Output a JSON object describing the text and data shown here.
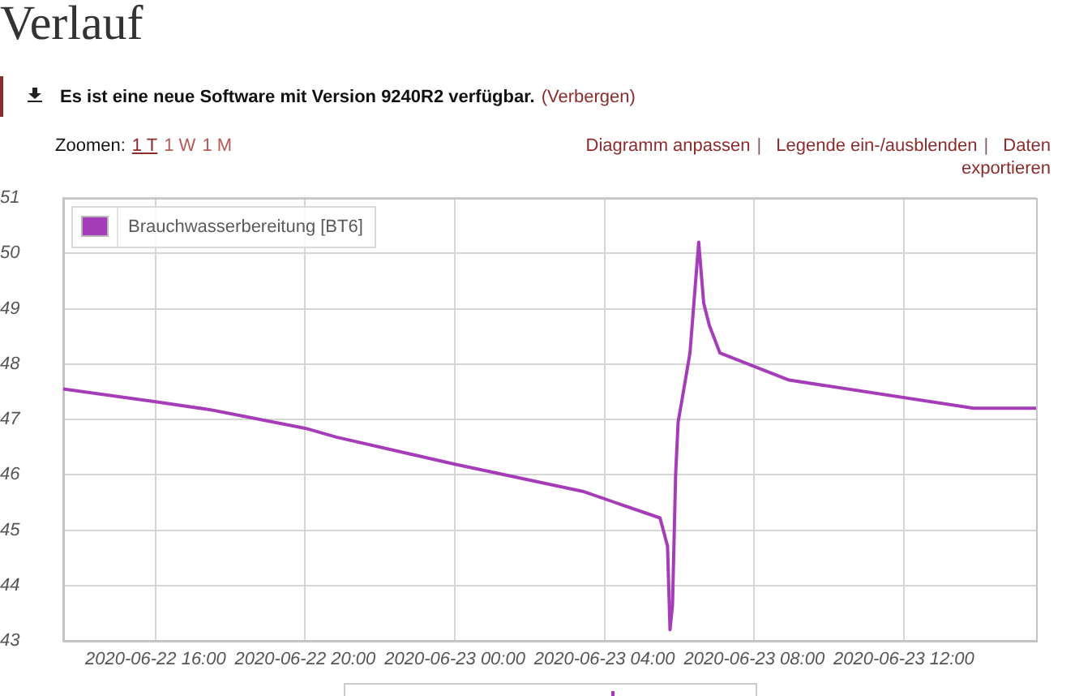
{
  "chart_data": {
    "type": "line",
    "title": "Verlauf",
    "annotations": [
      "Es ist eine neue Software mit Version 9240R2 verfügbar.",
      "(Verbergen)",
      "Zoomen:",
      "1 T",
      "1 W",
      "1 M",
      "Diagramm anpassen",
      "|",
      "Legende ein-/ausblenden",
      "|",
      "Daten",
      "exportieren"
    ],
    "x": [
      "2020-06-22T13:32",
      "2020-06-22T16:00",
      "2020-06-22T17:30",
      "2020-06-22T20:00",
      "2020-06-22T20:50",
      "2020-06-23T00:00",
      "2020-06-23T03:25",
      "2020-06-23T05:29",
      "2020-06-23T05:41",
      "2020-06-23T05:45",
      "2020-06-23T05:49",
      "2020-06-23T05:54",
      "2020-06-23T05:58",
      "2020-06-23T06:04",
      "2020-06-23T06:17",
      "2020-06-23T06:31",
      "2020-06-23T06:39",
      "2020-06-23T06:48",
      "2020-06-23T07:05",
      "2020-06-23T08:56",
      "2020-06-23T13:52",
      "2020-06-23T15:32"
    ],
    "series": [
      {
        "name": "Brauchwasserbereitung [BT6]",
        "color": "#a63db8",
        "values": [
          47.55,
          47.32,
          47.17,
          46.84,
          46.68,
          46.19,
          45.7,
          45.22,
          44.71,
          43.2,
          43.65,
          46.0,
          46.95,
          47.34,
          48.2,
          50.2,
          49.1,
          48.7,
          48.2,
          47.71,
          47.2,
          47.2
        ]
      }
    ],
    "xlim": [
      "2020-06-22T13:32",
      "2020-06-23T15:32"
    ],
    "xticks": [
      {
        "value": "2020-06-22T16:00",
        "label": "2020-06-22 16:00"
      },
      {
        "value": "2020-06-22T20:00",
        "label": "2020-06-22 20:00"
      },
      {
        "value": "2020-06-23T00:00",
        "label": "2020-06-23 00:00"
      },
      {
        "value": "2020-06-23T04:00",
        "label": "2020-06-23 04:00"
      },
      {
        "value": "2020-06-23T08:00",
        "label": "2020-06-23 08:00"
      },
      {
        "value": "2020-06-23T12:00",
        "label": "2020-06-23 12:00"
      }
    ],
    "ylim": [
      43,
      51
    ],
    "yticks": [
      43,
      44,
      45,
      46,
      47,
      48,
      49,
      50,
      51
    ],
    "grid": true,
    "legend": "top left",
    "marker": "none"
  }
}
